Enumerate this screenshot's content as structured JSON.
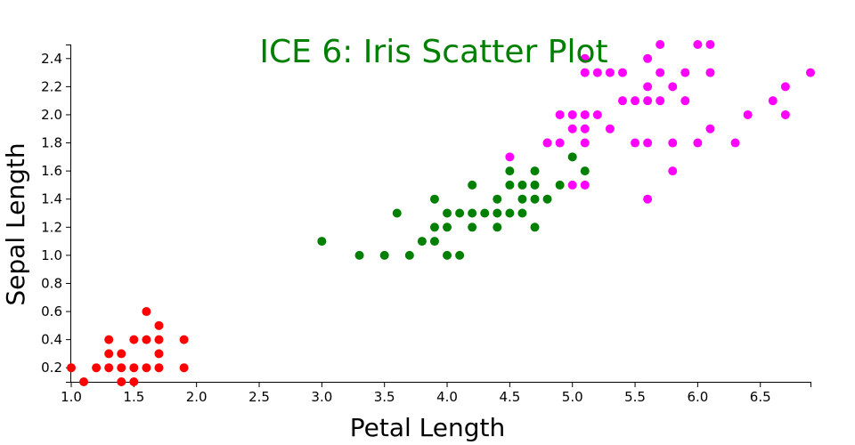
{
  "chart_data": {
    "type": "scatter",
    "title": "ICE 6: Iris Scatter Plot",
    "xlabel": "Petal Length",
    "ylabel": "Sepal Length",
    "xlim": [
      1.0,
      6.9
    ],
    "ylim": [
      0.1,
      2.5
    ],
    "x_ticks": [
      "1.0",
      "1.5",
      "2.0",
      "2.5",
      "3.0",
      "3.5",
      "4.0",
      "4.5",
      "5.0",
      "5.5",
      "6.0",
      "6.5"
    ],
    "y_ticks": [
      "0.2",
      "0.4",
      "0.6",
      "0.8",
      "1.0",
      "1.2",
      "1.4",
      "1.6",
      "1.8",
      "2.0",
      "2.2",
      "2.4"
    ],
    "grid": false,
    "colors": {
      "title": "#008000",
      "axis": "#000000"
    },
    "series": [
      {
        "color": "#ff0000",
        "points": [
          [
            1.0,
            0.2
          ],
          [
            1.1,
            0.1
          ],
          [
            1.2,
            0.2
          ],
          [
            1.3,
            0.2
          ],
          [
            1.3,
            0.3
          ],
          [
            1.3,
            0.4
          ],
          [
            1.4,
            0.1
          ],
          [
            1.4,
            0.2
          ],
          [
            1.4,
            0.3
          ],
          [
            1.5,
            0.1
          ],
          [
            1.5,
            0.2
          ],
          [
            1.5,
            0.4
          ],
          [
            1.6,
            0.2
          ],
          [
            1.6,
            0.4
          ],
          [
            1.6,
            0.6
          ],
          [
            1.7,
            0.2
          ],
          [
            1.7,
            0.3
          ],
          [
            1.7,
            0.4
          ],
          [
            1.7,
            0.5
          ],
          [
            1.9,
            0.2
          ],
          [
            1.9,
            0.4
          ]
        ]
      },
      {
        "color": "#008000",
        "points": [
          [
            3.0,
            1.1
          ],
          [
            3.3,
            1.0
          ],
          [
            3.5,
            1.0
          ],
          [
            3.6,
            1.3
          ],
          [
            3.7,
            1.0
          ],
          [
            3.8,
            1.1
          ],
          [
            3.9,
            1.1
          ],
          [
            3.9,
            1.2
          ],
          [
            3.9,
            1.4
          ],
          [
            4.0,
            1.0
          ],
          [
            4.0,
            1.2
          ],
          [
            4.0,
            1.3
          ],
          [
            4.1,
            1.0
          ],
          [
            4.1,
            1.3
          ],
          [
            4.2,
            1.2
          ],
          [
            4.2,
            1.3
          ],
          [
            4.2,
            1.5
          ],
          [
            4.3,
            1.3
          ],
          [
            4.4,
            1.2
          ],
          [
            4.4,
            1.3
          ],
          [
            4.4,
            1.4
          ],
          [
            4.5,
            1.3
          ],
          [
            4.5,
            1.5
          ],
          [
            4.5,
            1.6
          ],
          [
            4.6,
            1.3
          ],
          [
            4.6,
            1.4
          ],
          [
            4.6,
            1.5
          ],
          [
            4.7,
            1.2
          ],
          [
            4.7,
            1.4
          ],
          [
            4.7,
            1.5
          ],
          [
            4.7,
            1.6
          ],
          [
            4.8,
            1.4
          ],
          [
            4.8,
            1.8
          ],
          [
            4.9,
            1.5
          ],
          [
            5.0,
            1.7
          ],
          [
            5.1,
            1.6
          ]
        ]
      },
      {
        "color": "#ff00ff",
        "points": [
          [
            4.5,
            1.7
          ],
          [
            4.8,
            1.8
          ],
          [
            4.9,
            1.8
          ],
          [
            4.9,
            2.0
          ],
          [
            5.0,
            1.5
          ],
          [
            5.0,
            1.9
          ],
          [
            5.0,
            2.0
          ],
          [
            5.1,
            1.5
          ],
          [
            5.1,
            1.8
          ],
          [
            5.1,
            1.9
          ],
          [
            5.1,
            2.0
          ],
          [
            5.1,
            2.3
          ],
          [
            5.1,
            2.4
          ],
          [
            5.2,
            2.0
          ],
          [
            5.2,
            2.3
          ],
          [
            5.3,
            1.9
          ],
          [
            5.3,
            2.3
          ],
          [
            5.4,
            2.1
          ],
          [
            5.4,
            2.3
          ],
          [
            5.5,
            1.8
          ],
          [
            5.5,
            2.1
          ],
          [
            5.6,
            1.4
          ],
          [
            5.6,
            1.8
          ],
          [
            5.6,
            2.1
          ],
          [
            5.6,
            2.2
          ],
          [
            5.6,
            2.4
          ],
          [
            5.7,
            2.1
          ],
          [
            5.7,
            2.3
          ],
          [
            5.7,
            2.5
          ],
          [
            5.8,
            1.6
          ],
          [
            5.8,
            1.8
          ],
          [
            5.8,
            2.2
          ],
          [
            5.9,
            2.1
          ],
          [
            5.9,
            2.3
          ],
          [
            6.0,
            1.8
          ],
          [
            6.0,
            2.5
          ],
          [
            6.1,
            1.9
          ],
          [
            6.1,
            2.3
          ],
          [
            6.1,
            2.5
          ],
          [
            6.3,
            1.8
          ],
          [
            6.4,
            2.0
          ],
          [
            6.6,
            2.1
          ],
          [
            6.7,
            2.0
          ],
          [
            6.7,
            2.2
          ],
          [
            6.9,
            2.3
          ]
        ]
      }
    ]
  }
}
